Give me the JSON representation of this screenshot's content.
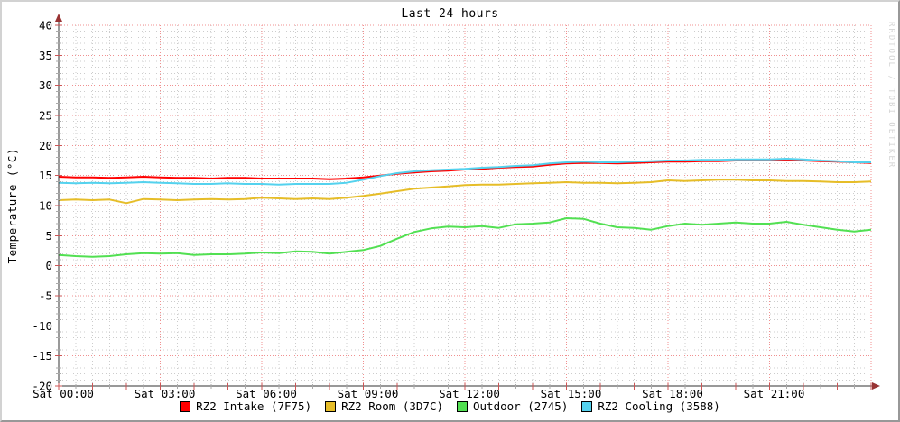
{
  "title": "Last 24 hours",
  "watermark": "RRDTOOL / TOBI OETIKER",
  "chart_data": {
    "type": "line",
    "title": "Last 24 hours",
    "xlabel": "",
    "ylabel": "Temperature (°C)",
    "ylim": [
      -20,
      40
    ],
    "y_major_step": 5,
    "y_minor_step": 1,
    "x_hours": [
      0,
      24
    ],
    "x_major_step_hours": 3,
    "x_minor_step_hours": 0.5,
    "sample_step_hours": 0.5,
    "grid": {
      "major_color": "#f09090",
      "minor_color": "#cccccc",
      "axis_color": "#333333",
      "arrow_color": "#993333",
      "major_tick_color": "#cc5555",
      "minor_tick_color": "#aaaaaa"
    },
    "legend_position": "bottom-center",
    "y_tick_labels": [
      "40",
      "35",
      "30",
      "25",
      "20",
      "15",
      "10",
      "5",
      "0",
      "-5",
      "-10",
      "-15",
      "-20"
    ],
    "x_tick_labels": [
      "Sat 00:00",
      "Sat 03:00",
      "Sat 06:00",
      "Sat 09:00",
      "Sat 12:00",
      "Sat 15:00",
      "Sat 18:00",
      "Sat 21:00"
    ],
    "series": [
      {
        "name": "RZ2 Intake (7F75)",
        "color": "#ff0000",
        "values": [
          14.8,
          14.7,
          14.7,
          14.6,
          14.7,
          14.8,
          14.7,
          14.6,
          14.6,
          14.5,
          14.6,
          14.6,
          14.5,
          14.5,
          14.5,
          14.5,
          14.4,
          14.5,
          14.7,
          15.0,
          15.3,
          15.5,
          15.7,
          15.8,
          16.0,
          16.1,
          16.3,
          16.4,
          16.5,
          16.8,
          17.0,
          17.1,
          17.1,
          17.0,
          17.1,
          17.2,
          17.3,
          17.3,
          17.4,
          17.4,
          17.5,
          17.5,
          17.5,
          17.6,
          17.5,
          17.4,
          17.3,
          17.2,
          17.1
        ]
      },
      {
        "name": "RZ2 Room (3D7C)",
        "color": "#e6bd28",
        "values": [
          10.9,
          11.0,
          10.9,
          11.0,
          10.4,
          11.1,
          11.0,
          10.9,
          11.0,
          11.1,
          11.0,
          11.1,
          11.3,
          11.2,
          11.1,
          11.2,
          11.1,
          11.3,
          11.6,
          12.0,
          12.4,
          12.8,
          13.0,
          13.2,
          13.4,
          13.5,
          13.5,
          13.6,
          13.7,
          13.8,
          13.9,
          13.8,
          13.8,
          13.7,
          13.8,
          13.9,
          14.2,
          14.1,
          14.2,
          14.3,
          14.3,
          14.2,
          14.2,
          14.1,
          14.1,
          14.0,
          13.9,
          13.9,
          14.0
        ]
      },
      {
        "name": "Outdoor (2745)",
        "color": "#52e052",
        "values": [
          1.8,
          1.6,
          1.5,
          1.6,
          1.9,
          2.1,
          2.0,
          2.1,
          1.8,
          1.9,
          1.9,
          2.0,
          2.2,
          2.1,
          2.4,
          2.3,
          2.0,
          2.3,
          2.6,
          3.3,
          4.5,
          5.6,
          6.2,
          6.5,
          6.4,
          6.6,
          6.3,
          6.9,
          7.0,
          7.2,
          7.9,
          7.8,
          7.0,
          6.4,
          6.3,
          6.0,
          6.6,
          7.0,
          6.8,
          7.0,
          7.2,
          7.0,
          7.0,
          7.3,
          6.8,
          6.4,
          6.0,
          5.7,
          6.0
        ]
      },
      {
        "name": "RZ2 Cooling (3588)",
        "color": "#54d2ee",
        "values": [
          13.8,
          13.7,
          13.8,
          13.7,
          13.8,
          13.9,
          13.8,
          13.7,
          13.6,
          13.6,
          13.7,
          13.6,
          13.6,
          13.5,
          13.6,
          13.6,
          13.6,
          13.8,
          14.3,
          14.9,
          15.4,
          15.7,
          15.9,
          16.0,
          16.1,
          16.3,
          16.4,
          16.6,
          16.7,
          17.0,
          17.2,
          17.3,
          17.2,
          17.2,
          17.3,
          17.4,
          17.5,
          17.5,
          17.6,
          17.6,
          17.7,
          17.7,
          17.7,
          17.8,
          17.7,
          17.5,
          17.4,
          17.2,
          17.2
        ]
      }
    ]
  }
}
